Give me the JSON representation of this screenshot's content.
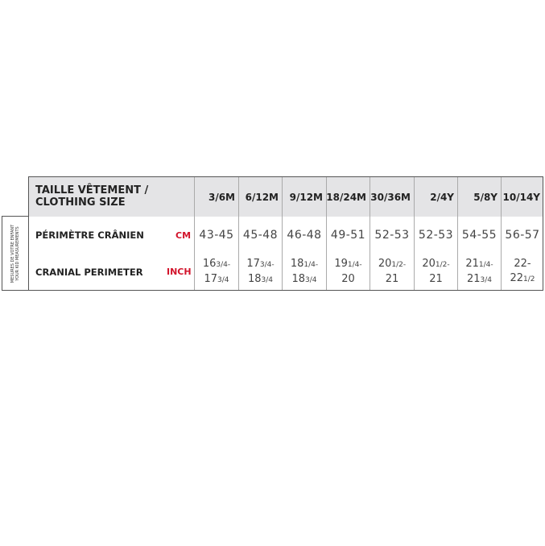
{
  "header": {
    "title_line1": "TAILLE VÊTEMENT /",
    "title_line2": "CLOTHING SIZE",
    "sizes": [
      "3/6M",
      "6/12M",
      "9/12M",
      "18/24M",
      "30/36M",
      "2/4Y",
      "5/8Y",
      "10/14Y"
    ]
  },
  "side_label": {
    "line1": "MESURES DE VOTRE ENFANT",
    "line2": "YOUR KID MEASUREMENTS"
  },
  "rows": [
    {
      "label": "PÉRIMÈTRE CRÂNIEN",
      "unit": "CM",
      "values": [
        "43-45",
        "45-48",
        "46-48",
        "49-51",
        "52-53",
        "52-53",
        "54-55",
        "56-57"
      ]
    },
    {
      "label": "CRANIAL PERIMETER",
      "unit": "INCH",
      "values": [
        {
          "a": "16",
          "af": "3/4-",
          "b": "17",
          "bf": "3/4"
        },
        {
          "a": "17",
          "af": "3/4-",
          "b": "18",
          "bf": "3/4"
        },
        {
          "a": "18",
          "af": "1/4-",
          "b": "18",
          "bf": "3/4"
        },
        {
          "a": "19",
          "af": "1/4-",
          "b": "20",
          "bf": ""
        },
        {
          "a": "20",
          "af": "1/2-",
          "b": "21",
          "bf": ""
        },
        {
          "a": "20",
          "af": "1/2-",
          "b": "21",
          "bf": ""
        },
        {
          "a": "21",
          "af": "1/4-",
          "b": "21",
          "bf": "3/4"
        },
        {
          "a": "22-22",
          "af": "1/2",
          "b": "",
          "bf": ""
        }
      ]
    }
  ],
  "colors": {
    "header_bg": "#e4e4e6",
    "unit": "#d2142b"
  }
}
